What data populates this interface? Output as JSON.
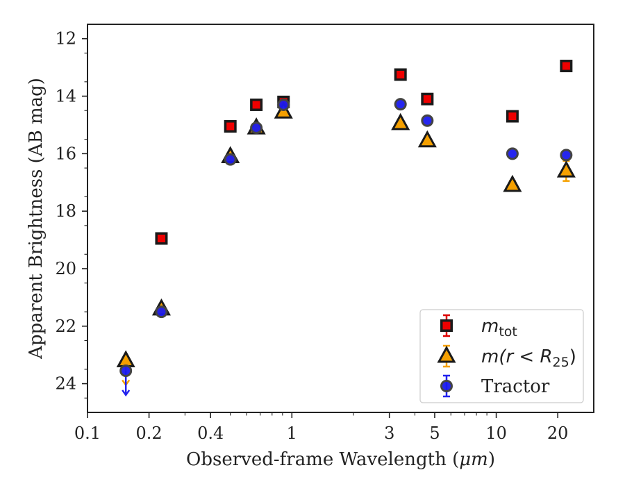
{
  "chart_data": {
    "type": "scatter",
    "xlabel_text": "Observed-frame Wavelength (",
    "xlabel_unit": "μm",
    "xlabel_close": ")",
    "ylabel": "Apparent Brightness (AB mag)",
    "x_scale": "log",
    "xlim": [
      0.1,
      30
    ],
    "ylim": [
      25,
      11.5
    ],
    "y_inverted": true,
    "grid": false,
    "legend_position": "lower-right",
    "x_ticks": [
      {
        "value": 0.1,
        "label": "0.1"
      },
      {
        "value": 0.2,
        "label": "0.2"
      },
      {
        "value": 0.4,
        "label": "0.4"
      },
      {
        "value": 1,
        "label": "1"
      },
      {
        "value": 3,
        "label": "3"
      },
      {
        "value": 5,
        "label": "5"
      },
      {
        "value": 10,
        "label": "10"
      },
      {
        "value": 20,
        "label": "20"
      }
    ],
    "y_ticks": [
      {
        "value": 12,
        "label": "12"
      },
      {
        "value": 14,
        "label": "14"
      },
      {
        "value": 16,
        "label": "16"
      },
      {
        "value": 18,
        "label": "18"
      },
      {
        "value": 20,
        "label": "20"
      },
      {
        "value": 22,
        "label": "22"
      },
      {
        "value": 24,
        "label": "24"
      }
    ],
    "series": [
      {
        "key": "m_tot",
        "legend_base": "m",
        "legend_sub": "tot",
        "marker": "square",
        "fill": "#ee0000",
        "edge": "#1a1a1a",
        "errcolor": "#dd0000",
        "points": [
          {
            "x": 0.23,
            "y": 18.95
          },
          {
            "x": 0.5,
            "y": 15.05
          },
          {
            "x": 0.67,
            "y": 14.3
          },
          {
            "x": 0.91,
            "y": 14.2
          },
          {
            "x": 3.4,
            "y": 13.25
          },
          {
            "x": 4.6,
            "y": 14.1
          },
          {
            "x": 12,
            "y": 14.7
          },
          {
            "x": 22,
            "y": 12.95
          }
        ]
      },
      {
        "key": "m_r25",
        "legend_pre": "m(r < R",
        "legend_sub": "25",
        "legend_post": ")",
        "marker": "triangle",
        "fill": "#f5a000",
        "edge": "#1a1a1a",
        "errcolor": "#f5a000",
        "points": [
          {
            "x": 0.154,
            "y": 23.2,
            "upper_limit": true
          },
          {
            "x": 0.23,
            "y": 21.4
          },
          {
            "x": 0.5,
            "y": 16.1
          },
          {
            "x": 0.67,
            "y": 15.1
          },
          {
            "x": 0.91,
            "y": 14.55
          },
          {
            "x": 3.4,
            "y": 14.95
          },
          {
            "x": 4.6,
            "y": 15.55
          },
          {
            "x": 12,
            "y": 17.1,
            "yerr": 0.15
          },
          {
            "x": 22,
            "y": 16.6,
            "yerr": 0.35
          }
        ]
      },
      {
        "key": "tractor",
        "legend_name": "Tractor",
        "marker": "circle",
        "fill": "#1a1aee",
        "edge": "#444444",
        "errcolor": "#2222ee",
        "points": [
          {
            "x": 0.154,
            "y": 23.55,
            "upper_limit": true
          },
          {
            "x": 0.23,
            "y": 21.5
          },
          {
            "x": 0.5,
            "y": 16.2
          },
          {
            "x": 0.67,
            "y": 15.1
          },
          {
            "x": 0.91,
            "y": 14.3
          },
          {
            "x": 3.4,
            "y": 14.28
          },
          {
            "x": 4.6,
            "y": 14.85
          },
          {
            "x": 12,
            "y": 16.0
          },
          {
            "x": 22,
            "y": 16.05
          }
        ]
      }
    ]
  }
}
